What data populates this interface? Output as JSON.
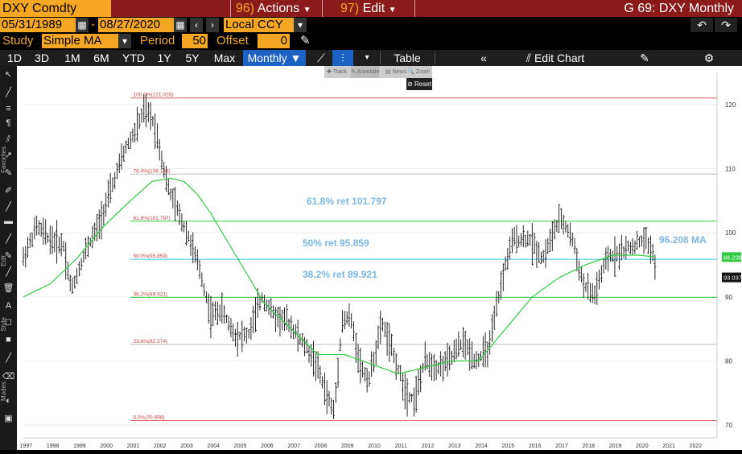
{
  "header": {
    "ticker": "DXY Comdty",
    "actions_num": "96)",
    "actions_label": "Actions",
    "edit_num": "97)",
    "edit_label": "Edit",
    "window_title": "G 69: DXY Monthly"
  },
  "dates": {
    "start": "05/31/1989",
    "sep": "-",
    "end": "08/27/2020",
    "currency": "Local CCY"
  },
  "study": {
    "label": "Study",
    "value": "Simple MA",
    "period_label": "Period",
    "period_value": "50",
    "offset_label": "Offset",
    "offset_value": "0"
  },
  "timeframes": [
    "1D",
    "3D",
    "1M",
    "6M",
    "YTD",
    "1Y",
    "5Y",
    "Max"
  ],
  "frequency": "Monthly",
  "toolbar": {
    "table_label": "Table",
    "edit_chart_label": "Edit Chart"
  },
  "minitools": [
    "Track",
    "Annotate",
    "News",
    "Zoom"
  ],
  "reset_label": "Reset",
  "sidebar_captions": [
    "Favorites",
    "Edit",
    "Style",
    "Modes"
  ],
  "chart_data": {
    "type": "line",
    "x_label_years": [
      "1997",
      "1998",
      "1999",
      "2000",
      "2001",
      "2002",
      "2003",
      "2004",
      "2005",
      "2006",
      "2007",
      "2008",
      "2009",
      "2010",
      "2011",
      "2012",
      "2013",
      "2014",
      "2015",
      "2016",
      "2017",
      "2018",
      "2019",
      "2020",
      "2021",
      "2022"
    ],
    "y_ticks": [
      70,
      80,
      90,
      100,
      110,
      120
    ],
    "ylim": [
      68,
      125
    ],
    "xlim": [
      1997.0,
      2022.9
    ],
    "series": [
      {
        "name": "DXY",
        "style": "ohlc-bars",
        "color": "#000000",
        "x": [
          1997.0,
          1997.5,
          1998.0,
          1998.5,
          1998.8,
          1999.3,
          1999.8,
          2000.3,
          2000.8,
          2001.2,
          2001.5,
          2001.8,
          2002.0,
          2002.4,
          2002.8,
          2003.2,
          2003.6,
          2004.0,
          2004.4,
          2004.9,
          2005.4,
          2005.9,
          2006.4,
          2006.9,
          2007.4,
          2007.9,
          2008.3,
          2008.6,
          2008.9,
          2009.2,
          2009.6,
          2009.9,
          2010.4,
          2010.9,
          2011.3,
          2011.6,
          2012.0,
          2012.5,
          2012.9,
          2013.4,
          2013.9,
          2014.4,
          2014.7,
          2015.0,
          2015.3,
          2015.9,
          2016.4,
          2016.9,
          2017.1,
          2017.5,
          2017.9,
          2018.3,
          2018.8,
          2019.3,
          2019.8,
          2020.2,
          2020.5,
          2020.65
        ],
        "y": [
          96,
          101,
          99,
          98,
          91,
          97,
          101,
          107,
          113,
          116,
          119,
          118,
          115,
          107,
          103,
          99,
          94,
          87,
          88,
          84,
          84,
          90,
          87,
          86,
          83,
          80,
          75,
          72,
          86,
          87,
          79,
          77,
          86,
          80,
          75,
          74,
          80,
          79,
          80,
          83,
          80,
          82,
          89,
          95,
          99,
          99,
          96,
          101,
          102,
          99,
          92,
          90,
          96,
          97,
          98,
          99,
          97,
          93
        ]
      },
      {
        "name": "MA",
        "style": "line",
        "color": "#2ecc40",
        "x": [
          1997.0,
          1998.0,
          1999.0,
          2000.0,
          2001.0,
          2001.8,
          2002.5,
          2003.0,
          2003.5,
          2004.0,
          2005.0,
          2006.0,
          2007.0,
          2008.0,
          2009.0,
          2010.0,
          2011.0,
          2012.0,
          2013.0,
          2014.0,
          2015.0,
          2016.0,
          2017.0,
          2018.0,
          2019.0,
          2020.0,
          2020.6
        ],
        "y": [
          90,
          92,
          96,
          101,
          105,
          108,
          108.5,
          108,
          106,
          103,
          96,
          89,
          85,
          81,
          81,
          79.5,
          78,
          79,
          80,
          80,
          85,
          90,
          93,
          95,
          96.5,
          96.5,
          96.2
        ]
      }
    ],
    "fib_levels": [
      {
        "label": "100.0%(121.020)",
        "value": 121.02,
        "color": "#e05a5a"
      },
      {
        "label": "76.4%(109.144)",
        "value": 109.144,
        "color": "#bbbbbb"
      },
      {
        "label": "61.8%(101.797)",
        "value": 101.797,
        "color": "#2ecc40"
      },
      {
        "label": "50.0%(95.859)",
        "value": 95.859,
        "color": "#30c8e0"
      },
      {
        "label": "38.2%(89.921)",
        "value": 89.921,
        "color": "#2ecc40"
      },
      {
        "label": "23.6%(82.574)",
        "value": 82.574,
        "color": "#bbbbbb"
      },
      {
        "label": "0.0%(70.698)",
        "value": 70.698,
        "color": "#e05a5a"
      }
    ],
    "annotations": [
      {
        "text": "61.8% ret 101.797",
        "color": "#7ab8e8"
      },
      {
        "text": "50% ret 95.859",
        "color": "#7ab8e8"
      },
      {
        "text": "96.208 MA",
        "color": "#7ab8e8"
      },
      {
        "text": "38.2% ret 89.921",
        "color": "#7ab8e8"
      }
    ],
    "tags": [
      {
        "text": "96.208",
        "value": 96.208,
        "bg": "#2ecc40"
      },
      {
        "text": "93.037",
        "value": 93.037,
        "bg": "#111111"
      }
    ]
  }
}
